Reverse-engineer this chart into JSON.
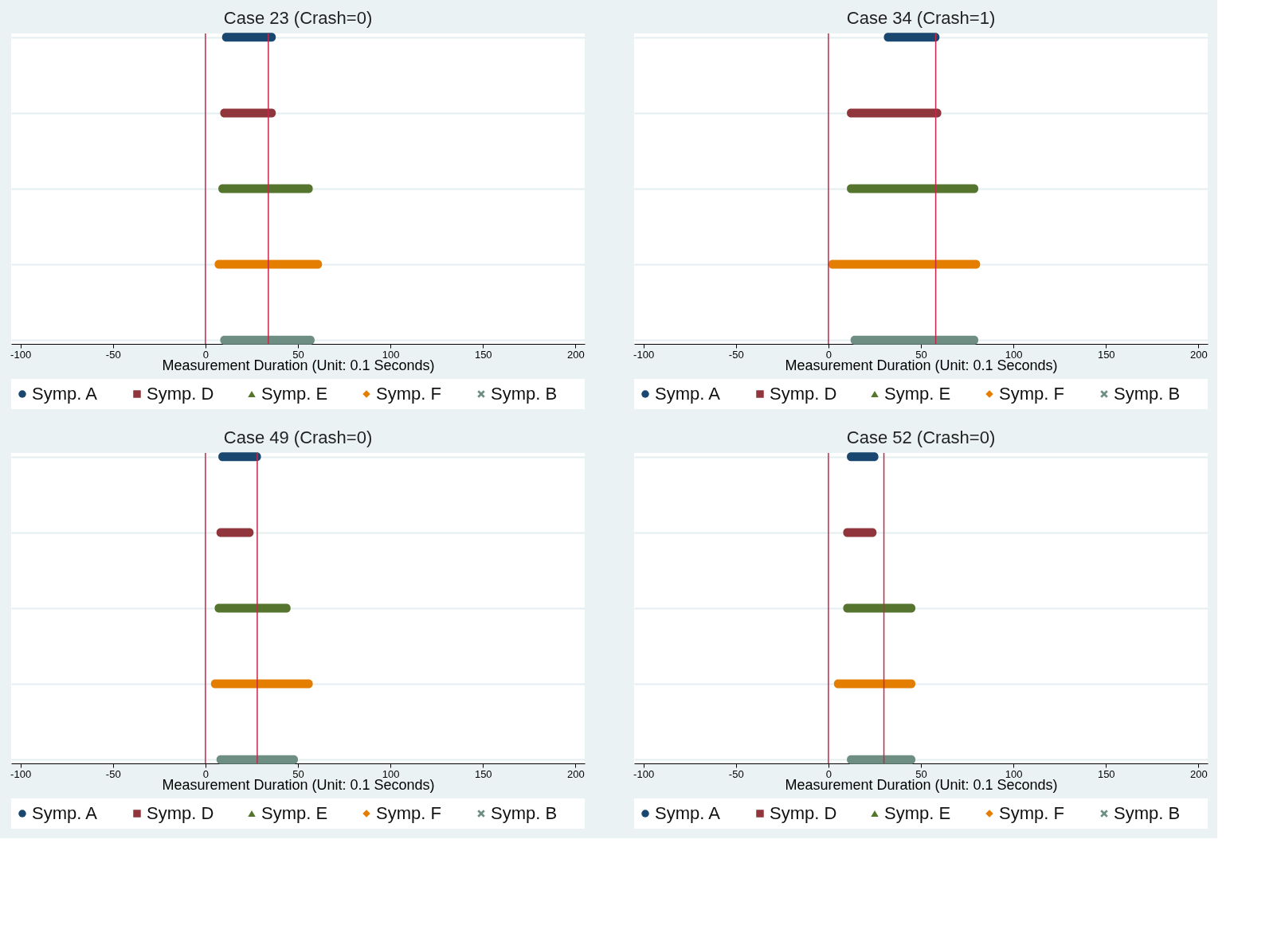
{
  "chart_data": [
    {
      "type": "bar",
      "orientation": "horizontal",
      "title": "Case 23 (Crash=0)",
      "xlabel": "Measurement Duration (Unit: 0.1 Seconds)",
      "categories": [
        null,
        null,
        null,
        null,
        null
      ],
      "xlim": [
        -105,
        205
      ],
      "xticks": [
        -100,
        -50,
        0,
        50,
        100,
        150,
        200
      ],
      "grid": "y",
      "legend": "bottom",
      "tick_labels": "x",
      "ref_lines": [
        {
          "axis": "x",
          "value": 0,
          "color": "#c8264a"
        },
        {
          "axis": "x",
          "value": 34,
          "color": "#c8264a"
        }
      ],
      "series": [
        {
          "name": "Symp. A",
          "color": "#1a476f",
          "marker": "circle",
          "base": [
            9,
            null,
            null,
            null,
            null
          ],
          "values": [
            29,
            null,
            null,
            null,
            null
          ]
        },
        {
          "name": "Symp. D",
          "color": "#90353b",
          "marker": "square",
          "base": [
            null,
            8,
            null,
            null,
            null
          ],
          "values": [
            null,
            30,
            null,
            null,
            null
          ]
        },
        {
          "name": "Symp. E",
          "color": "#55752f",
          "marker": "triangle",
          "base": [
            null,
            null,
            7,
            null,
            null
          ],
          "values": [
            null,
            null,
            51,
            null,
            null
          ]
        },
        {
          "name": "Symp. F",
          "color": "#e37e00",
          "marker": "diamond",
          "base": [
            null,
            null,
            null,
            5,
            null
          ],
          "values": [
            null,
            null,
            null,
            58,
            null
          ]
        },
        {
          "name": "Symp. B",
          "color": "#6e8e84",
          "marker": "cross",
          "base": [
            null,
            null,
            null,
            null,
            8
          ],
          "values": [
            null,
            null,
            null,
            null,
            51
          ]
        }
      ]
    },
    {
      "type": "bar",
      "orientation": "horizontal",
      "title": "Case 34 (Crash=1)",
      "xlabel": "Measurement Duration (Unit: 0.1 Seconds)",
      "categories": [
        null,
        null,
        null,
        null,
        null
      ],
      "xlim": [
        -105,
        205
      ],
      "xticks": [
        -100,
        -50,
        0,
        50,
        100,
        150,
        200
      ],
      "grid": "y",
      "legend": "bottom",
      "tick_labels": "x",
      "ref_lines": [
        {
          "axis": "x",
          "value": 0,
          "color": "#c8264a"
        },
        {
          "axis": "x",
          "value": 58,
          "color": "#c8264a"
        }
      ],
      "series": [
        {
          "name": "Symp. A",
          "color": "#1a476f",
          "marker": "circle",
          "base": [
            30,
            null,
            null,
            null,
            null
          ],
          "values": [
            30,
            null,
            null,
            null,
            null
          ]
        },
        {
          "name": "Symp. D",
          "color": "#90353b",
          "marker": "square",
          "base": [
            null,
            10,
            null,
            null,
            null
          ],
          "values": [
            null,
            51,
            null,
            null,
            null
          ]
        },
        {
          "name": "Symp. E",
          "color": "#55752f",
          "marker": "triangle",
          "base": [
            null,
            null,
            10,
            null,
            null
          ],
          "values": [
            null,
            null,
            71,
            null,
            null
          ]
        },
        {
          "name": "Symp. F",
          "color": "#e37e00",
          "marker": "diamond",
          "base": [
            null,
            null,
            null,
            0,
            null
          ],
          "values": [
            null,
            null,
            null,
            82,
            null
          ]
        },
        {
          "name": "Symp. B",
          "color": "#6e8e84",
          "marker": "cross",
          "base": [
            null,
            null,
            null,
            null,
            12
          ],
          "values": [
            null,
            null,
            null,
            null,
            69
          ]
        }
      ]
    },
    {
      "type": "bar",
      "orientation": "horizontal",
      "title": "Case 49 (Crash=0)",
      "xlabel": "Measurement Duration (Unit: 0.1 Seconds)",
      "categories": [
        null,
        null,
        null,
        null,
        null
      ],
      "xlim": [
        -105,
        205
      ],
      "xticks": [
        -100,
        -50,
        0,
        50,
        100,
        150,
        200
      ],
      "grid": "y",
      "legend": "bottom",
      "tick_labels": "x",
      "ref_lines": [
        {
          "axis": "x",
          "value": 0,
          "color": "#c8264a"
        },
        {
          "axis": "x",
          "value": 28,
          "color": "#c8264a"
        }
      ],
      "series": [
        {
          "name": "Symp. A",
          "color": "#1a476f",
          "marker": "circle",
          "base": [
            7,
            null,
            null,
            null,
            null
          ],
          "values": [
            23,
            null,
            null,
            null,
            null
          ]
        },
        {
          "name": "Symp. D",
          "color": "#90353b",
          "marker": "square",
          "base": [
            null,
            6,
            null,
            null,
            null
          ],
          "values": [
            null,
            20,
            null,
            null,
            null
          ]
        },
        {
          "name": "Symp. E",
          "color": "#55752f",
          "marker": "triangle",
          "base": [
            null,
            null,
            5,
            null,
            null
          ],
          "values": [
            null,
            null,
            41,
            null,
            null
          ]
        },
        {
          "name": "Symp. F",
          "color": "#e37e00",
          "marker": "diamond",
          "base": [
            null,
            null,
            null,
            3,
            null
          ],
          "values": [
            null,
            null,
            null,
            55,
            null
          ]
        },
        {
          "name": "Symp. B",
          "color": "#6e8e84",
          "marker": "cross",
          "base": [
            null,
            null,
            null,
            null,
            6
          ],
          "values": [
            null,
            null,
            null,
            null,
            44
          ]
        }
      ]
    },
    {
      "type": "bar",
      "orientation": "horizontal",
      "title": "Case 52 (Crash=0)",
      "xlabel": "Measurement Duration (Unit: 0.1 Seconds)",
      "categories": [
        null,
        null,
        null,
        null,
        null
      ],
      "xlim": [
        -105,
        205
      ],
      "xticks": [
        -100,
        -50,
        0,
        50,
        100,
        150,
        200
      ],
      "grid": "y",
      "legend": "bottom",
      "tick_labels": "x",
      "ref_lines": [
        {
          "axis": "x",
          "value": 0,
          "color": "#c8264a"
        },
        {
          "axis": "x",
          "value": 30,
          "color": "#c8264a"
        }
      ],
      "series": [
        {
          "name": "Symp. A",
          "color": "#1a476f",
          "marker": "circle",
          "base": [
            10,
            null,
            null,
            null,
            null
          ],
          "values": [
            17,
            null,
            null,
            null,
            null
          ]
        },
        {
          "name": "Symp. D",
          "color": "#90353b",
          "marker": "square",
          "base": [
            null,
            8,
            null,
            null,
            null
          ],
          "values": [
            null,
            18,
            null,
            null,
            null
          ]
        },
        {
          "name": "Symp. E",
          "color": "#55752f",
          "marker": "triangle",
          "base": [
            null,
            null,
            8,
            null,
            null
          ],
          "values": [
            null,
            null,
            39,
            null,
            null
          ]
        },
        {
          "name": "Symp. F",
          "color": "#e37e00",
          "marker": "diamond",
          "base": [
            null,
            null,
            null,
            3,
            null
          ],
          "values": [
            null,
            null,
            null,
            44,
            null
          ]
        },
        {
          "name": "Symp. B",
          "color": "#6e8e84",
          "marker": "cross",
          "base": [
            null,
            null,
            null,
            null,
            10
          ],
          "values": [
            null,
            null,
            null,
            null,
            37
          ]
        }
      ]
    }
  ]
}
